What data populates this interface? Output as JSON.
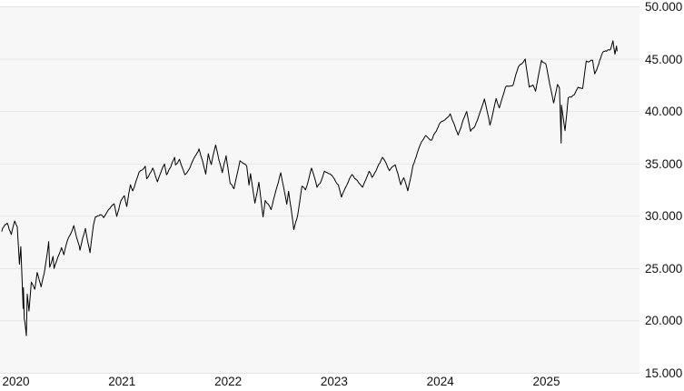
{
  "style": {
    "page_bg": "#ffffff",
    "plot_bg": "#f7f7f7",
    "grid_color": "#e5e5e5",
    "line_color": "#000000",
    "text_color": "#111111"
  },
  "chart_data": {
    "type": "line",
    "title": "",
    "xlabel": "",
    "ylabel": "",
    "legend": "none",
    "grid": "horizontal",
    "number_format": "thousands separated by dot",
    "x_unit": "decimal_year",
    "xlim": [
      2019.979,
      2026.006
    ],
    "ylim": [
      15000,
      50000
    ],
    "y_tick_values": [
      50000,
      45000,
      40000,
      35000,
      30000,
      25000,
      20000,
      15000
    ],
    "y_tick_labels": [
      "50.000",
      "45.000",
      "40.000",
      "35.000",
      "30.000",
      "25.000",
      "20.000",
      "15.000"
    ],
    "x_tick_values": [
      2020,
      2021,
      2022,
      2023,
      2024,
      2025
    ],
    "x_tick_labels": [
      "2020",
      "2021",
      "2022",
      "2023",
      "2024",
      "2025"
    ],
    "series": [
      {
        "name": "index_level",
        "points": [
          [
            2019.995,
            28538
          ],
          [
            2020.005,
            28868
          ],
          [
            2020.047,
            29348
          ],
          [
            2020.085,
            28256
          ],
          [
            2020.118,
            29551
          ],
          [
            2020.142,
            28992
          ],
          [
            2020.162,
            25409
          ],
          [
            2020.175,
            27090
          ],
          [
            2020.197,
            21200
          ],
          [
            2020.2,
            23185
          ],
          [
            2020.208,
            20188
          ],
          [
            2020.214,
            19899
          ],
          [
            2020.227,
            18592
          ],
          [
            2020.236,
            22552
          ],
          [
            2020.252,
            20943
          ],
          [
            2020.274,
            23719
          ],
          [
            2020.307,
            23018
          ],
          [
            2020.329,
            24634
          ],
          [
            2020.367,
            23248
          ],
          [
            2020.403,
            24995
          ],
          [
            2020.438,
            27572
          ],
          [
            2020.447,
            25128
          ],
          [
            2020.479,
            26156
          ],
          [
            2020.488,
            25016
          ],
          [
            2020.559,
            27006
          ],
          [
            2020.581,
            26313
          ],
          [
            2020.614,
            27687
          ],
          [
            2020.66,
            28654
          ],
          [
            2020.674,
            29100
          ],
          [
            2020.726,
            27148
          ],
          [
            2020.732,
            26763
          ],
          [
            2020.784,
            28837
          ],
          [
            2020.827,
            26520
          ],
          [
            2020.86,
            29158
          ],
          [
            2020.879,
            29950
          ],
          [
            2020.901,
            30046
          ],
          [
            2020.942,
            30069
          ],
          [
            2020.956,
            29861
          ],
          [
            2021.0,
            30606
          ],
          [
            2021.055,
            31188
          ],
          [
            2021.079,
            29983
          ],
          [
            2021.118,
            31458
          ],
          [
            2021.151,
            31962
          ],
          [
            2021.173,
            30924
          ],
          [
            2021.208,
            33015
          ],
          [
            2021.23,
            32420
          ],
          [
            2021.29,
            34201
          ],
          [
            2021.348,
            34778
          ],
          [
            2021.362,
            33588
          ],
          [
            2021.419,
            34600
          ],
          [
            2021.463,
            33290
          ],
          [
            2021.529,
            34996
          ],
          [
            2021.548,
            33962
          ],
          [
            2021.625,
            35625
          ],
          [
            2021.633,
            34894
          ],
          [
            2021.671,
            35444
          ],
          [
            2021.721,
            33970
          ],
          [
            2021.751,
            34326
          ],
          [
            2021.819,
            35757
          ],
          [
            2021.855,
            36432
          ],
          [
            2021.918,
            34022
          ],
          [
            2021.942,
            35971
          ],
          [
            2021.97,
            34932
          ],
          [
            2022.0,
            36338
          ],
          [
            2022.011,
            36800
          ],
          [
            2022.074,
            34160
          ],
          [
            2022.11,
            35768
          ],
          [
            2022.148,
            33132
          ],
          [
            2022.184,
            32632
          ],
          [
            2022.241,
            35294
          ],
          [
            2022.304,
            34793
          ],
          [
            2022.326,
            32977
          ],
          [
            2022.34,
            34061
          ],
          [
            2022.381,
            31253
          ],
          [
            2022.419,
            33248
          ],
          [
            2022.458,
            29927
          ],
          [
            2022.479,
            31500
          ],
          [
            2022.534,
            30630
          ],
          [
            2022.625,
            34152
          ],
          [
            2022.682,
            31145
          ],
          [
            2022.699,
            32381
          ],
          [
            2022.748,
            28726
          ],
          [
            2022.784,
            30039
          ],
          [
            2022.825,
            32862
          ],
          [
            2022.858,
            32514
          ],
          [
            2022.915,
            34590
          ],
          [
            2022.967,
            32758
          ],
          [
            2022.997,
            33147
          ],
          [
            2023.036,
            34303
          ],
          [
            2023.09,
            34054
          ],
          [
            2023.167,
            33003
          ],
          [
            2023.197,
            31819
          ],
          [
            2023.296,
            33977
          ],
          [
            2023.397,
            32765
          ],
          [
            2023.458,
            34299
          ],
          [
            2023.485,
            33715
          ],
          [
            2023.584,
            35630
          ],
          [
            2023.649,
            34347
          ],
          [
            2023.704,
            34907
          ],
          [
            2023.756,
            33002
          ],
          [
            2023.784,
            33670
          ],
          [
            2023.822,
            32418
          ],
          [
            2023.871,
            34828
          ],
          [
            2023.951,
            37090
          ],
          [
            2023.992,
            37710
          ],
          [
            2024.047,
            37267
          ],
          [
            2024.118,
            38797
          ],
          [
            2024.222,
            39781
          ],
          [
            2024.296,
            37753
          ],
          [
            2024.378,
            40004
          ],
          [
            2024.414,
            38111
          ],
          [
            2024.455,
            38589
          ],
          [
            2024.545,
            41198
          ],
          [
            2024.597,
            38703
          ],
          [
            2024.655,
            41240
          ],
          [
            2024.685,
            40345
          ],
          [
            2024.742,
            42313
          ],
          [
            2024.814,
            42515
          ],
          [
            2024.866,
            44293
          ],
          [
            2024.929,
            45014
          ],
          [
            2024.967,
            42327
          ],
          [
            2025.003,
            42544
          ],
          [
            2025.027,
            41938
          ],
          [
            2025.082,
            44882
          ],
          [
            2025.123,
            44546
          ],
          [
            2025.197,
            40814
          ],
          [
            2025.233,
            42587
          ],
          [
            2025.252,
            42225
          ],
          [
            2025.268,
            37000
          ],
          [
            2025.271,
            40608
          ],
          [
            2025.304,
            38170
          ],
          [
            2025.334,
            41317
          ],
          [
            2025.392,
            41603
          ],
          [
            2025.427,
            42320
          ],
          [
            2025.471,
            42207
          ],
          [
            2025.504,
            44829
          ],
          [
            2025.564,
            44902
          ],
          [
            2025.584,
            43589
          ],
          [
            2025.658,
            45637
          ],
          [
            2025.734,
            45947
          ],
          [
            2025.756,
            46758
          ],
          [
            2025.775,
            45480
          ],
          [
            2025.789,
            46253
          ],
          [
            2025.795,
            45750
          ]
        ]
      }
    ]
  }
}
